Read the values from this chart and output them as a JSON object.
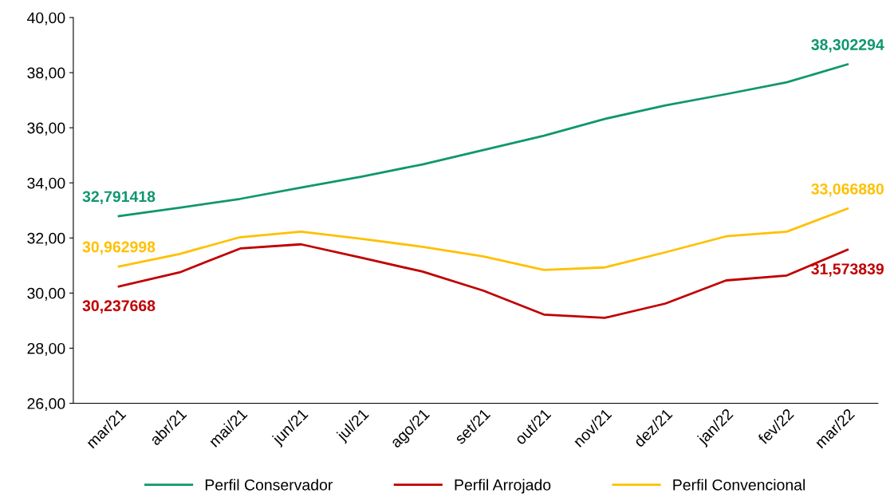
{
  "chart_data": {
    "type": "line",
    "categories": [
      "mar/21",
      "abr/21",
      "mai/21",
      "jun/21",
      "jul/21",
      "ago/21",
      "set/21",
      "out/21",
      "nov/21",
      "dez/21",
      "jan/22",
      "fev/22",
      "mar/22"
    ],
    "series": [
      {
        "name": "Perfil Conservador",
        "color": "#10976f",
        "values": [
          32.791418,
          33.1,
          33.42,
          33.83,
          34.23,
          34.67,
          35.19,
          35.71,
          36.32,
          36.81,
          37.22,
          37.65,
          38.302294
        ],
        "value_labels": [
          "32,791418",
          null,
          null,
          null,
          null,
          null,
          null,
          null,
          null,
          null,
          null,
          null,
          "38,302294"
        ]
      },
      {
        "name": "Perfil Arrojado",
        "color": "#c00000",
        "values": [
          30.237668,
          30.75,
          31.62,
          31.77,
          31.28,
          30.78,
          30.09,
          29.22,
          29.1,
          29.62,
          30.46,
          30.64,
          31.573839
        ],
        "value_labels": [
          "30,237668",
          null,
          null,
          null,
          null,
          null,
          null,
          null,
          null,
          null,
          null,
          null,
          "31,573839"
        ]
      },
      {
        "name": "Perfil Convencional",
        "color": "#ffc000",
        "values": [
          30.962998,
          31.42,
          32.03,
          32.23,
          31.97,
          31.68,
          31.33,
          30.84,
          30.93,
          31.48,
          32.06,
          32.23,
          33.06688
        ],
        "value_labels": [
          "30,962998",
          null,
          null,
          null,
          null,
          null,
          null,
          null,
          null,
          null,
          null,
          null,
          "33,066880"
        ]
      }
    ],
    "ylim": [
      26,
      40
    ],
    "yticks": [
      {
        "value": 26,
        "label": "26,00"
      },
      {
        "value": 28,
        "label": "28,00"
      },
      {
        "value": 30,
        "label": "30,00"
      },
      {
        "value": 32,
        "label": "32,00"
      },
      {
        "value": 34,
        "label": "34,00"
      },
      {
        "value": 36,
        "label": "36,00"
      },
      {
        "value": 38,
        "label": "38,00"
      },
      {
        "value": 40,
        "label": "40,00"
      }
    ],
    "grid": false,
    "legend": "bottom",
    "marker": "none",
    "line_style": "solid"
  }
}
